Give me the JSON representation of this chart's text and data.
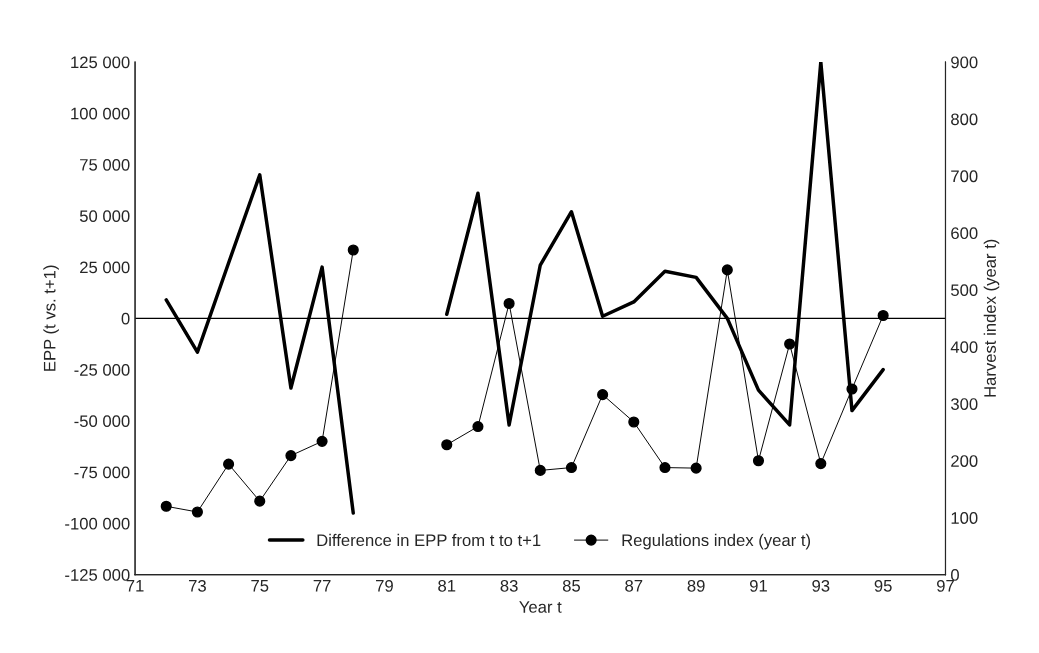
{
  "chart_data": {
    "type": "line",
    "xlabel": "Year t",
    "ylabel": "EPP (t vs. t+1)",
    "y2label": "Harvest index (year t)",
    "x": [
      72,
      73,
      74,
      75,
      76,
      77,
      78,
      79,
      80,
      81,
      82,
      83,
      84,
      85,
      86,
      87,
      88,
      89,
      90,
      91,
      92,
      93,
      94,
      95
    ],
    "series": [
      {
        "name": "Difference in EPP from t to t+1",
        "color": "#000000",
        "marker": "none",
        "values": [
          9000,
          -16500,
          27000,
          70000,
          -34000,
          25000,
          -95000,
          null,
          null,
          2000,
          61000,
          -52000,
          26000,
          52000,
          1000,
          8000,
          23000,
          20000,
          0,
          -35000,
          -52000,
          125000,
          -45000,
          -25000
        ]
      },
      {
        "name": "Regulations index (year t)",
        "color": "#000000",
        "marker": "circle",
        "axis": "y2",
        "values": [
          120,
          110,
          194,
          129,
          209,
          234,
          570,
          null,
          null,
          228,
          260,
          476,
          183,
          188,
          316,
          268,
          188,
          187,
          535,
          200,
          405,
          195,
          326,
          455
        ]
      }
    ],
    "xlim": [
      71,
      97
    ],
    "xticks": [
      71,
      73,
      75,
      77,
      79,
      81,
      83,
      85,
      87,
      89,
      91,
      93,
      95,
      97
    ],
    "ylim": [
      -125000,
      125000
    ],
    "yticks": [
      {
        "value": -125000,
        "label": "-125 000"
      },
      {
        "value": -100000,
        "label": "-100 000"
      },
      {
        "value": -75000,
        "label": "-75 000"
      },
      {
        "value": -50000,
        "label": "-50 000"
      },
      {
        "value": -25000,
        "label": "-25 000"
      },
      0,
      {
        "value": 25000,
        "label": "25 000"
      },
      {
        "value": 50000,
        "label": "50 000"
      },
      {
        "value": 75000,
        "label": "75 000"
      },
      {
        "value": 100000,
        "label": "100 000"
      },
      {
        "value": 125000,
        "label": "125 000"
      }
    ],
    "y2lim": [
      0,
      900
    ],
    "y2ticks": [
      0,
      100,
      200,
      300,
      400,
      500,
      600,
      700,
      800,
      900
    ],
    "ref_lines": [
      {
        "axis": "y",
        "value": 0,
        "color": "#000000"
      }
    ],
    "grid": false,
    "legend": "bottom"
  }
}
